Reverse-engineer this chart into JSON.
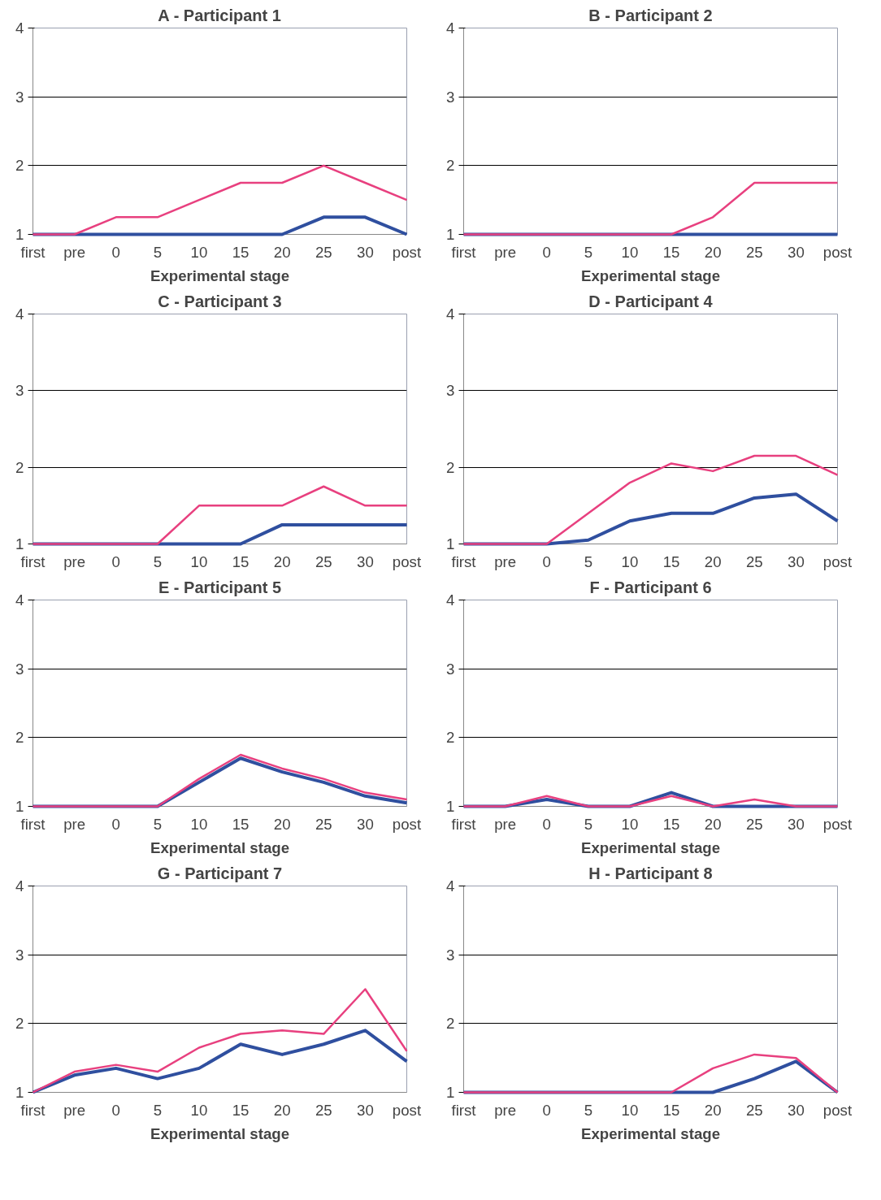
{
  "chart_data": [
    {
      "type": "line",
      "title": "A - Participant 1",
      "xlabel": "Experimental stage",
      "categories": [
        "first",
        "pre",
        "0",
        "5",
        "10",
        "15",
        "20",
        "25",
        "30",
        "post"
      ],
      "ylim": [
        1,
        4
      ],
      "yticks": [
        1,
        2,
        3,
        4
      ],
      "grid": "y",
      "series": [
        {
          "color": "#e8407f",
          "values": [
            1,
            1,
            1.25,
            1.25,
            1.5,
            1.75,
            1.75,
            2,
            1.75,
            1.5
          ]
        },
        {
          "color": "#2f4f9f",
          "values": [
            1,
            1,
            1,
            1,
            1,
            1,
            1,
            1.25,
            1.25,
            1
          ]
        }
      ]
    },
    {
      "type": "line",
      "title": "B - Participant 2",
      "xlabel": "Experimental stage",
      "categories": [
        "first",
        "pre",
        "0",
        "5",
        "10",
        "15",
        "20",
        "25",
        "30",
        "post"
      ],
      "ylim": [
        1,
        4
      ],
      "yticks": [
        1,
        2,
        3,
        4
      ],
      "grid": "y",
      "series": [
        {
          "color": "#e8407f",
          "values": [
            1,
            1,
            1,
            1,
            1,
            1,
            1.25,
            1.75,
            1.75,
            1.75
          ]
        },
        {
          "color": "#2f4f9f",
          "values": [
            1,
            1,
            1,
            1,
            1,
            1,
            1,
            1,
            1,
            1
          ]
        }
      ]
    },
    {
      "type": "line",
      "title": "C - Participant 3",
      "categories": [
        "first",
        "pre",
        "0",
        "5",
        "10",
        "15",
        "20",
        "25",
        "30",
        "post"
      ],
      "ylim": [
        1,
        4
      ],
      "yticks": [
        1,
        2,
        3,
        4
      ],
      "grid": "y",
      "series": [
        {
          "color": "#e8407f",
          "values": [
            1,
            1,
            1,
            1,
            1.5,
            1.5,
            1.5,
            1.75,
            1.5,
            1.5
          ]
        },
        {
          "color": "#2f4f9f",
          "values": [
            1,
            1,
            1,
            1,
            1,
            1,
            1.25,
            1.25,
            1.25,
            1.25
          ]
        }
      ]
    },
    {
      "type": "line",
      "title": "D - Participant 4",
      "categories": [
        "first",
        "pre",
        "0",
        "5",
        "10",
        "15",
        "20",
        "25",
        "30",
        "post"
      ],
      "ylim": [
        1,
        4
      ],
      "yticks": [
        1,
        2,
        3,
        4
      ],
      "grid": "y",
      "series": [
        {
          "color": "#e8407f",
          "values": [
            1,
            1,
            1,
            1.4,
            1.8,
            2.05,
            1.95,
            2.15,
            2.15,
            1.9
          ]
        },
        {
          "color": "#2f4f9f",
          "values": [
            1,
            1,
            1,
            1.05,
            1.3,
            1.4,
            1.4,
            1.6,
            1.65,
            1.3
          ]
        }
      ]
    },
    {
      "type": "line",
      "title": "E - Participant 5",
      "xlabel": "Experimental stage",
      "categories": [
        "first",
        "pre",
        "0",
        "5",
        "10",
        "15",
        "20",
        "25",
        "30",
        "post"
      ],
      "ylim": [
        1,
        4
      ],
      "yticks": [
        1,
        2,
        3,
        4
      ],
      "grid": "y",
      "series": [
        {
          "color": "#e8407f",
          "values": [
            1,
            1,
            1,
            1,
            1.4,
            1.75,
            1.55,
            1.4,
            1.2,
            1.1
          ]
        },
        {
          "color": "#2f4f9f",
          "values": [
            1,
            1,
            1,
            1,
            1.35,
            1.7,
            1.5,
            1.35,
            1.15,
            1.05
          ]
        }
      ]
    },
    {
      "type": "line",
      "title": "F - Participant 6",
      "xlabel": "Experimental stage",
      "categories": [
        "first",
        "pre",
        "0",
        "5",
        "10",
        "15",
        "20",
        "25",
        "30",
        "post"
      ],
      "ylim": [
        1,
        4
      ],
      "yticks": [
        1,
        2,
        3,
        4
      ],
      "grid": "y",
      "series": [
        {
          "color": "#e8407f",
          "values": [
            1,
            1,
            1.15,
            1,
            1,
            1.15,
            1,
            1.1,
            1,
            1
          ]
        },
        {
          "color": "#2f4f9f",
          "values": [
            1,
            1,
            1.1,
            1,
            1,
            1.2,
            1,
            1,
            1,
            1
          ]
        }
      ]
    },
    {
      "type": "line",
      "title": "G - Participant 7",
      "xlabel": "Experimental stage",
      "categories": [
        "first",
        "pre",
        "0",
        "5",
        "10",
        "15",
        "20",
        "25",
        "30",
        "post"
      ],
      "ylim": [
        1,
        4
      ],
      "yticks": [
        1,
        2,
        3,
        4
      ],
      "grid": "y",
      "series": [
        {
          "color": "#e8407f",
          "values": [
            1,
            1.3,
            1.4,
            1.3,
            1.65,
            1.85,
            1.9,
            1.85,
            2.5,
            1.6
          ]
        },
        {
          "color": "#2f4f9f",
          "values": [
            1,
            1.25,
            1.35,
            1.2,
            1.35,
            1.7,
            1.55,
            1.7,
            1.9,
            1.45
          ]
        }
      ]
    },
    {
      "type": "line",
      "title": "H - Participant 8",
      "xlabel": "Experimental stage",
      "categories": [
        "first",
        "pre",
        "0",
        "5",
        "10",
        "15",
        "20",
        "25",
        "30",
        "post"
      ],
      "ylim": [
        1,
        4
      ],
      "yticks": [
        1,
        2,
        3,
        4
      ],
      "grid": "y",
      "series": [
        {
          "color": "#e8407f",
          "values": [
            1,
            1,
            1,
            1,
            1,
            1,
            1.35,
            1.55,
            1.5,
            1
          ]
        },
        {
          "color": "#2f4f9f",
          "values": [
            1,
            1,
            1,
            1,
            1,
            1,
            1,
            1.2,
            1.45,
            1
          ]
        }
      ]
    }
  ]
}
